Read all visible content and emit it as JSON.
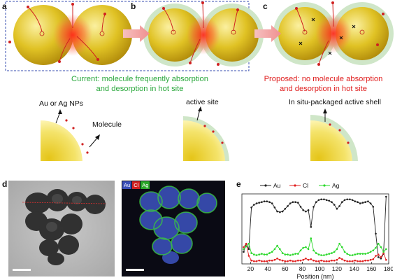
{
  "panels": {
    "a": "a",
    "b": "b",
    "c": "c",
    "d": "d",
    "e": "e"
  },
  "captions": {
    "current_line1": "Current: molecule frequently absorption",
    "current_line2": "and desorption in hot site",
    "proposed_line1": "Proposed: no molecule absorption",
    "proposed_line2": "and desorption in hot site",
    "current_color": "#2aa83c",
    "proposed_color": "#e02020"
  },
  "labels": {
    "au_ag_nps": "Au or Ag NPs",
    "molecule": "Molecule",
    "active_site": "active site",
    "in_situ_shell": "In situ-packaged active shell"
  },
  "eds_legend": [
    "Au",
    "Cl",
    "Ag"
  ],
  "chart_data": {
    "type": "line",
    "xlabel": "Position (nm)",
    "ylabel": "",
    "xlim": [
      10,
      180
    ],
    "xticks": [
      20,
      40,
      60,
      80,
      100,
      120,
      140,
      160,
      180
    ],
    "legend_position": "top",
    "series": [
      {
        "name": "Au",
        "color": "#222222",
        "x": [
          12,
          15,
          18,
          21,
          24,
          27,
          30,
          33,
          36,
          39,
          42,
          45,
          48,
          51,
          54,
          57,
          60,
          63,
          66,
          69,
          72,
          75,
          78,
          81,
          84,
          87,
          90,
          93,
          96,
          99,
          102,
          105,
          108,
          111,
          114,
          117,
          120,
          123,
          126,
          129,
          132,
          135,
          138,
          141,
          144,
          147,
          150,
          153,
          156,
          159,
          162,
          165,
          168,
          171,
          174,
          177
        ],
        "values": [
          0.18,
          0.3,
          0.22,
          0.84,
          0.88,
          0.9,
          0.91,
          0.92,
          0.93,
          0.93,
          0.92,
          0.9,
          0.84,
          0.78,
          0.77,
          0.78,
          0.82,
          0.86,
          0.9,
          0.92,
          0.92,
          0.91,
          0.85,
          0.8,
          0.78,
          0.8,
          0.55,
          0.85,
          0.92,
          0.95,
          0.96,
          0.96,
          0.95,
          0.94,
          0.92,
          0.88,
          0.82,
          0.86,
          0.92,
          0.95,
          0.96,
          0.96,
          0.95,
          0.93,
          0.92,
          0.9,
          0.91,
          0.92,
          0.93,
          0.9,
          0.85,
          0.45,
          0.1,
          0.08,
          0.15,
          1.0
        ]
      },
      {
        "name": "Cl",
        "color": "#e02020",
        "x": [
          12,
          15,
          18,
          21,
          24,
          27,
          30,
          33,
          36,
          39,
          42,
          45,
          48,
          51,
          54,
          57,
          60,
          63,
          66,
          69,
          72,
          75,
          78,
          81,
          84,
          87,
          90,
          93,
          96,
          99,
          102,
          105,
          108,
          111,
          114,
          117,
          120,
          123,
          126,
          129,
          132,
          135,
          138,
          141,
          144,
          147,
          150,
          153,
          156,
          159,
          162,
          165,
          168,
          171,
          174,
          177
        ],
        "values": [
          0.25,
          0.3,
          0.12,
          0.05,
          0.04,
          0.04,
          0.05,
          0.04,
          0.04,
          0.04,
          0.05,
          0.05,
          0.06,
          0.08,
          0.06,
          0.05,
          0.04,
          0.04,
          0.05,
          0.04,
          0.04,
          0.05,
          0.05,
          0.06,
          0.08,
          0.06,
          0.07,
          0.05,
          0.04,
          0.04,
          0.05,
          0.04,
          0.04,
          0.04,
          0.05,
          0.05,
          0.06,
          0.09,
          0.07,
          0.05,
          0.04,
          0.04,
          0.04,
          0.05,
          0.04,
          0.04,
          0.04,
          0.05,
          0.05,
          0.06,
          0.07,
          0.12,
          0.14,
          0.1,
          0.16,
          0.06
        ]
      },
      {
        "name": "Ag",
        "color": "#2ad82a",
        "x": [
          12,
          15,
          18,
          21,
          24,
          27,
          30,
          33,
          36,
          39,
          42,
          45,
          48,
          51,
          54,
          57,
          60,
          63,
          66,
          69,
          72,
          75,
          78,
          81,
          84,
          87,
          90,
          93,
          96,
          99,
          102,
          105,
          108,
          111,
          114,
          117,
          120,
          123,
          126,
          129,
          132,
          135,
          138,
          141,
          144,
          147,
          150,
          153,
          156,
          159,
          162,
          165,
          168,
          171,
          174,
          177
        ],
        "values": [
          0.22,
          0.26,
          0.3,
          0.16,
          0.14,
          0.13,
          0.14,
          0.15,
          0.14,
          0.14,
          0.16,
          0.18,
          0.22,
          0.27,
          0.22,
          0.16,
          0.14,
          0.14,
          0.13,
          0.14,
          0.15,
          0.15,
          0.2,
          0.24,
          0.25,
          0.22,
          0.38,
          0.2,
          0.16,
          0.14,
          0.13,
          0.13,
          0.14,
          0.15,
          0.16,
          0.18,
          0.22,
          0.3,
          0.25,
          0.18,
          0.15,
          0.13,
          0.13,
          0.14,
          0.15,
          0.15,
          0.15,
          0.15,
          0.16,
          0.18,
          0.2,
          0.24,
          0.3,
          0.25,
          0.18,
          0.22
        ]
      }
    ]
  }
}
